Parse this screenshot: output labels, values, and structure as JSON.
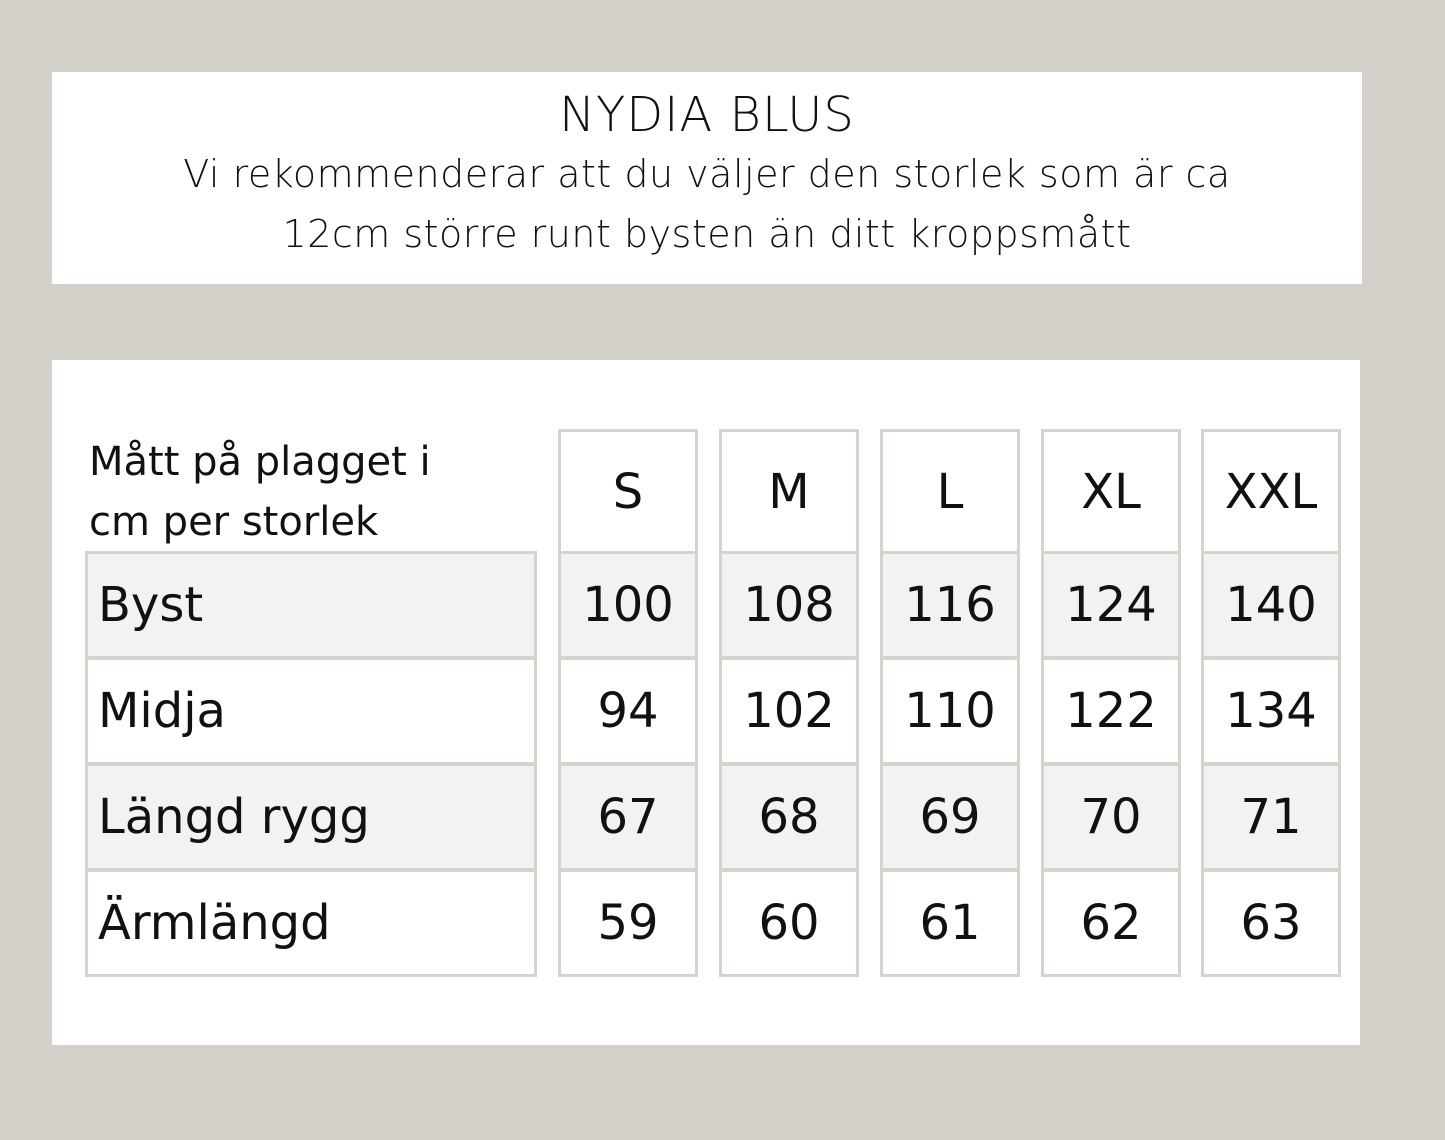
{
  "header": {
    "title": "NYDIA BLUS",
    "subtitle_line1": "Vi rekommenderar att du väljer den storlek som är ca",
    "subtitle_line2": "12cm större runt bysten än ditt kroppsmått"
  },
  "table": {
    "corner_line1": "Mått på plagget i",
    "corner_line2": "cm per storlek",
    "sizes": [
      "S",
      "M",
      "L",
      "XL",
      "XXL"
    ],
    "rows": [
      {
        "label": "Byst",
        "values": [
          "100",
          "108",
          "116",
          "124",
          "140"
        ]
      },
      {
        "label": "Midja",
        "values": [
          "94",
          "102",
          "110",
          "122",
          "134"
        ]
      },
      {
        "label": "Längd rygg",
        "values": [
          "67",
          "68",
          "69",
          "70",
          "71"
        ]
      },
      {
        "label": "Ärmlängd",
        "values": [
          "59",
          "60",
          "61",
          "62",
          "63"
        ]
      }
    ],
    "colors": {
      "background": "#d4d1ca",
      "border": "#d6d3cc",
      "shaded_row": "#f2f2f2"
    }
  }
}
